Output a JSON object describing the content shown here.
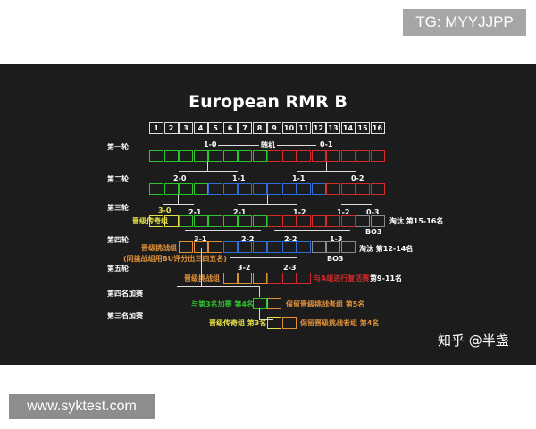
{
  "watermarks": {
    "tg": "TG: MYYJJPP",
    "site": "www.syktest.com",
    "zhihu": "知乎 @半盏"
  },
  "title": "European RMR B",
  "colors": {
    "green": "#2fc22f",
    "red": "#d42a2a",
    "blue": "#2d6fd6",
    "yellow": "#e6e04a",
    "gray": "#8a8a8a",
    "orange": "#e0913a",
    "white": "#ffffff"
  },
  "numbers": [
    "1",
    "2",
    "3",
    "4",
    "5",
    "6",
    "7",
    "8",
    "9",
    "10",
    "11",
    "12",
    "13",
    "14",
    "15",
    "16"
  ],
  "rounds": {
    "r1": "第一轮",
    "r2": "第二轮",
    "r3": "第三轮",
    "r4": "第四轮",
    "r5": "第五轮",
    "p4": "第四名加赛",
    "p3": "第三名加赛"
  },
  "rows": [
    {
      "start": 1,
      "cells": [
        "green",
        "green",
        "green",
        "green",
        "green",
        "green",
        "green",
        "green",
        "red",
        "red",
        "red",
        "red",
        "red",
        "red",
        "red",
        "red"
      ]
    },
    {
      "start": 1,
      "cells": [
        "green",
        "green",
        "green",
        "green",
        "blue",
        "blue",
        "blue",
        "blue",
        "blue",
        "blue",
        "blue",
        "blue",
        "red",
        "red",
        "red",
        "red"
      ]
    },
    {
      "start": 1,
      "cells": [
        "yellow",
        "yellow",
        "green",
        "green",
        "green",
        "green",
        "green",
        "green",
        "red",
        "red",
        "red",
        "red",
        "red",
        "red",
        "gray",
        "gray"
      ]
    },
    {
      "start": 3,
      "cells": [
        "orange",
        "orange",
        "orange",
        "blue",
        "blue",
        "blue",
        "blue",
        "blue",
        "blue",
        "gray",
        "gray",
        "gray"
      ]
    },
    {
      "start": 6,
      "cells": [
        "orange",
        "orange",
        "orange",
        "red",
        "red",
        "red"
      ]
    },
    {
      "start": 8,
      "cells": [
        "green",
        "orange"
      ]
    },
    {
      "start": 9,
      "cells": [
        "yellow",
        "orange"
      ]
    }
  ],
  "scores": {
    "r1": [
      "1-0",
      "随机",
      "0-1"
    ],
    "r2": [
      "2-0",
      "1-1",
      "1-1",
      "0-2"
    ],
    "r3": [
      "3-0",
      "2-1",
      "2-1",
      "1-2",
      "1-2",
      "0-3"
    ],
    "r4": [
      "3-1",
      "2-2",
      "2-2",
      "1-3"
    ],
    "r5": [
      "3-2",
      "2-3"
    ],
    "bo3": "BO3"
  },
  "labels": {
    "legend_up": "晋级传奇组",
    "elim_15_16": "淘汰 第15-16名",
    "challenge": "晋级挑战组",
    "challenge_note": "(同挑战组用BU评分出三四五名)",
    "elim_12_14": "淘汰 第12-14名",
    "challenge5": "晋级挑战组",
    "revival": "与A组进行复活赛",
    "place_9_11": "第9-11名",
    "p4_left": "与第3名加赛 第4名",
    "p4_right": "保留晋级挑战者组 第5名",
    "p3_left": "晋级传奇组 第3名",
    "p3_right": "保留晋级挑战者组 第4名"
  }
}
